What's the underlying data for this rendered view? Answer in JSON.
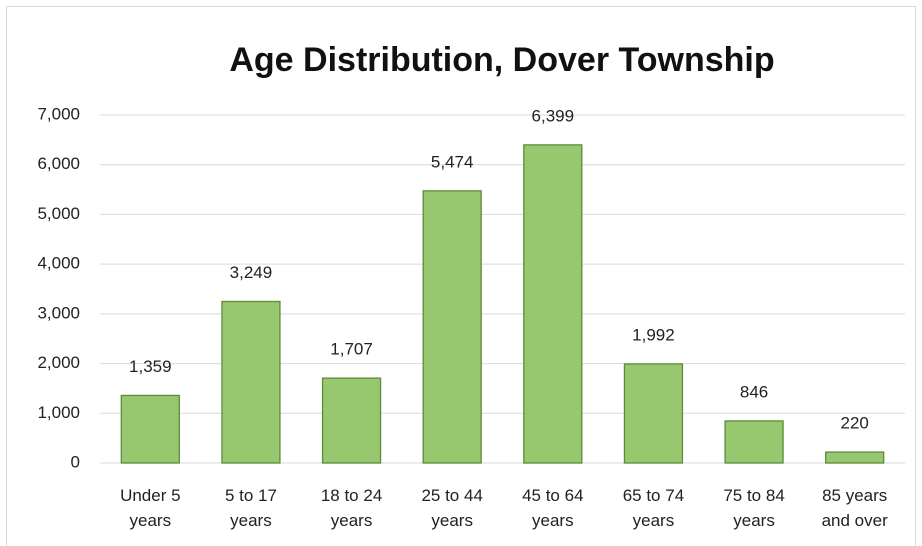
{
  "chart_data": {
    "type": "bar",
    "title": "Age Distribution, Dover Township",
    "categories": [
      "Under 5 years",
      "5 to 17 years",
      "18 to 24 years",
      "25 to 44 years",
      "45 to 64 years",
      "65 to 74 years",
      "75 to 84 years",
      "85 years and over"
    ],
    "values": [
      1359,
      3249,
      1707,
      5474,
      6399,
      1992,
      846,
      220
    ],
    "value_labels": [
      "1,359",
      "3,249",
      "1,707",
      "5,474",
      "6,399",
      "1,992",
      "846",
      "220"
    ],
    "color": "#97c76f",
    "ylim": [
      0,
      7000
    ],
    "yticks": [
      0,
      {
        "value": 1000,
        "label": "1,000"
      },
      {
        "value": 2000,
        "label": "2,000"
      },
      {
        "value": 3000,
        "label": "3,000"
      },
      {
        "value": 4000,
        "label": "4,000"
      },
      {
        "value": 5000,
        "label": "5,000"
      },
      {
        "value": 6000,
        "label": "6,000"
      },
      {
        "value": 7000,
        "label": "7,000"
      }
    ],
    "grid": true
  }
}
